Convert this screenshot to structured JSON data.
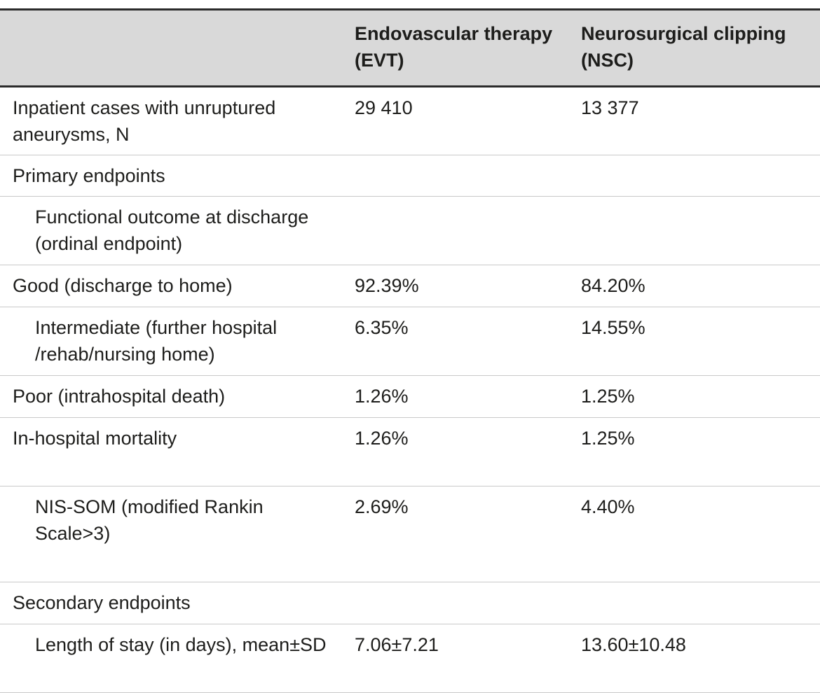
{
  "table": {
    "headers": {
      "label": "",
      "evt": "Endovascular therapy (EVT)",
      "nsc": "Neurosurgical clipping (NSC)"
    },
    "rows": [
      {
        "label": "Inpatient cases with unruptured aneurysms, N",
        "evt": "29 410",
        "nsc": "13 377"
      },
      {
        "label": "Primary endpoints",
        "evt": "",
        "nsc": ""
      },
      {
        "label": "Functional outcome at discharge (ordinal endpoint)",
        "evt": "",
        "nsc": ""
      },
      {
        "label": "Good (discharge to home)",
        "evt": "92.39%",
        "nsc": "84.20%"
      },
      {
        "label": "Intermediate (further hospital /rehab/nursing home)",
        "evt": "6.35%",
        "nsc": "14.55%"
      },
      {
        "label": "Poor (intrahospital death)",
        "evt": "1.26%",
        "nsc": "1.25%"
      },
      {
        "label": "In-hospital mortality",
        "evt": "1.26%",
        "nsc": "1.25%"
      },
      {
        "label": "NIS-SOM (modified Rankin Scale>3)",
        "evt": "2.69%",
        "nsc": "4.40%"
      },
      {
        "label": "Secondary endpoints",
        "evt": "",
        "nsc": ""
      },
      {
        "label": "Length of stay (in days), mean±SD",
        "evt": "7.06±7.21",
        "nsc": "13.60±10.48"
      }
    ]
  }
}
